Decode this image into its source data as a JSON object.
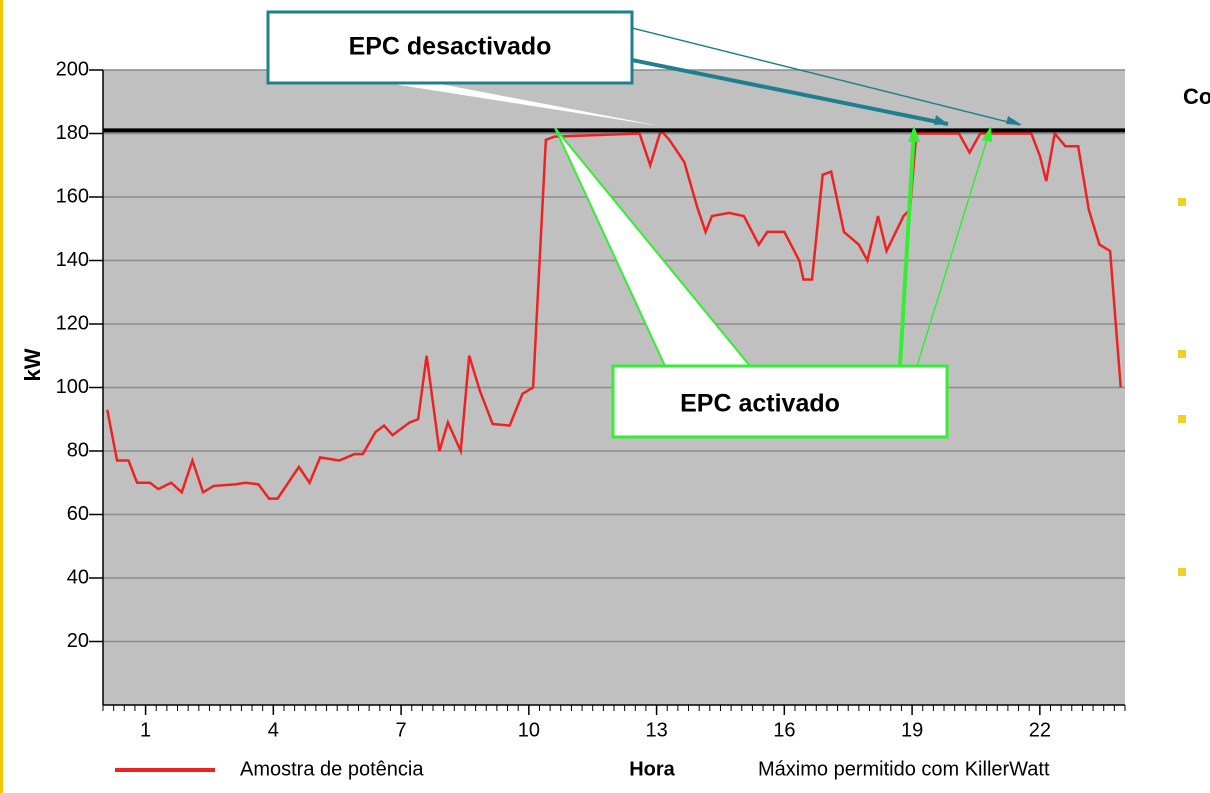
{
  "chart_data": {
    "type": "line",
    "ylabel": "kW",
    "xlabel": "Hora",
    "xlim": [
      0,
      24
    ],
    "xticks": [
      1,
      4,
      7,
      10,
      13,
      16,
      19,
      22
    ],
    "ylim": [
      0,
      200
    ],
    "yticks": [
      20,
      40,
      60,
      80,
      100,
      120,
      140,
      160,
      180,
      200
    ],
    "grid": true,
    "series": [
      {
        "name": "Amostra de potência",
        "color": "#ee2222",
        "x": [
          0.1,
          0.33,
          0.6,
          0.8,
          1.1,
          1.3,
          1.6,
          1.85,
          2.1,
          2.35,
          2.6,
          3.1,
          3.35,
          3.65,
          3.9,
          4.1,
          4.6,
          4.85,
          5.1,
          5.55,
          5.9,
          6.1,
          6.4,
          6.6,
          6.8,
          7.2,
          7.4,
          7.6,
          7.9,
          8.1,
          8.4,
          8.6,
          8.85,
          9.15,
          9.55,
          9.85,
          10.1,
          10.4,
          10.6,
          12.6,
          12.85,
          13.1,
          13.3,
          13.65,
          13.95,
          14.15,
          14.3,
          14.7,
          15.05,
          15.4,
          15.6,
          16,
          16.35,
          16.45,
          16.65,
          16.9,
          17.1,
          17.4,
          17.75,
          17.95,
          18.2,
          18.4,
          18.8,
          18.95,
          19.1,
          20.1,
          20.35,
          20.6,
          21.8,
          22,
          22.15,
          22.35,
          22.6,
          22.9,
          23.15,
          23.4,
          23.65,
          23.9
        ],
        "values": [
          93,
          77,
          77,
          70,
          70,
          68,
          70,
          67,
          77,
          67,
          69,
          69.5,
          70,
          69.5,
          65,
          65,
          75,
          70,
          78,
          77,
          79,
          79,
          86,
          88,
          85,
          89,
          90,
          110,
          80,
          89,
          80,
          110,
          99,
          88.5,
          88,
          98,
          100,
          178,
          179,
          180,
          170,
          181,
          178,
          171,
          157,
          149,
          154,
          155,
          154,
          145,
          149,
          149,
          140,
          134,
          134,
          167,
          168,
          149,
          145,
          140,
          154,
          143,
          154,
          156,
          180,
          180,
          174,
          180,
          180,
          173,
          165,
          180,
          176,
          176,
          156,
          145,
          143,
          100
        ]
      },
      {
        "name": "Máximo permitido com KillerWatt",
        "color": "#000000",
        "value": 181
      }
    ],
    "annotations": [
      "EPC desactivado",
      "EPC activado"
    ],
    "side_text": "Co"
  }
}
